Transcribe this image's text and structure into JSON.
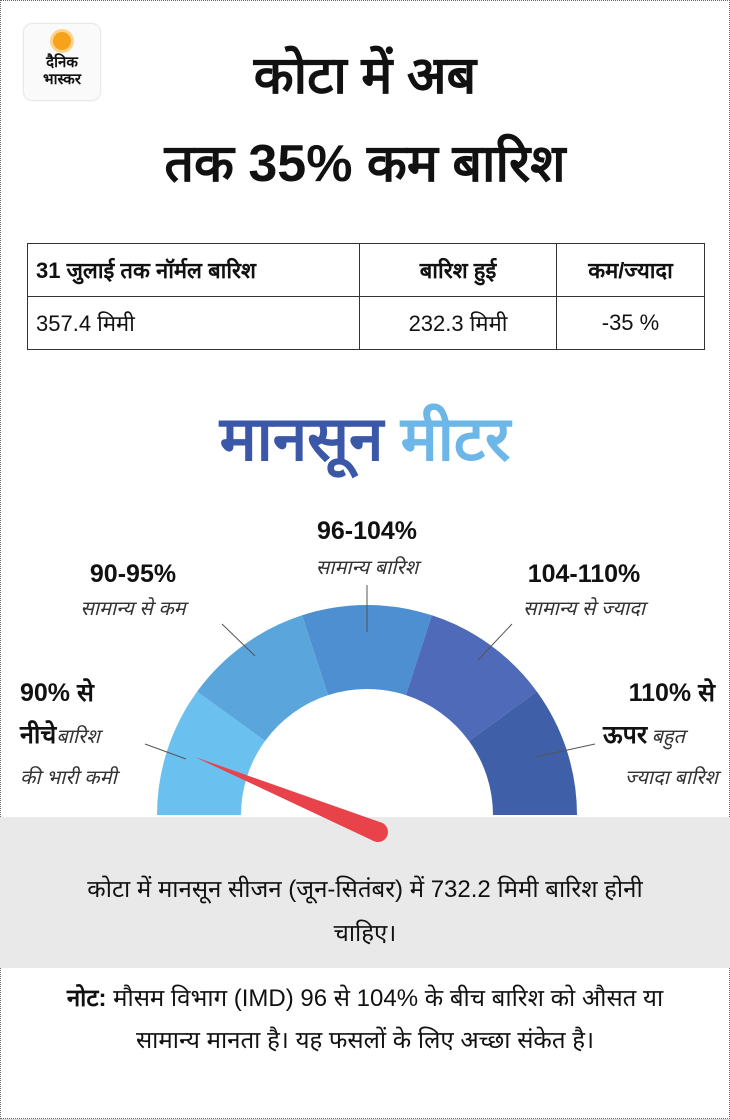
{
  "logo": {
    "line1": "दैनिक",
    "line2": "भास्कर"
  },
  "header": {
    "title_lines": [
      "कोटा में अब",
      "तक 35% कम बारिश"
    ]
  },
  "table": {
    "columns": [
      "31 जुलाई तक नॉर्मल बारिश",
      "बारिश हुई",
      "कम/ज्यादा"
    ],
    "rows": [
      [
        "357.4 मिमी",
        "232.3 मिमी",
        "-35 %"
      ]
    ]
  },
  "meter": {
    "title_words": [
      "मानसून",
      "मीटर"
    ],
    "segments": [
      {
        "range_lines": [
          "90% से",
          "नीचे"
        ],
        "label_lines": [
          "बारिश",
          "की भारी कमी"
        ]
      },
      {
        "range_lines": [
          "90-95%"
        ],
        "label_lines": [
          "सामान्य से कम"
        ]
      },
      {
        "range_lines": [
          "96-104%"
        ],
        "label_lines": [
          "सामान्य बारिश"
        ]
      },
      {
        "range_lines": [
          "104-110%"
        ],
        "label_lines": [
          "सामान्य से ज्यादा"
        ]
      },
      {
        "range_lines": [
          "110% से",
          "ऊपर"
        ],
        "label_lines": [
          "बहुत",
          "ज्यादा बारिश"
        ]
      }
    ]
  },
  "notice": "कोटा में मानसून सीजन (जून-सितंबर) में 732.2 मिमी बारिश होनी चाहिए।",
  "note": {
    "label": "नोट:",
    "text": "मौसम विभाग (IMD) 96 से 104% के बीच बारिश को औसत या सामान्य मानता है। यह फसलों के लिए अच्छा संकेत है।"
  }
}
